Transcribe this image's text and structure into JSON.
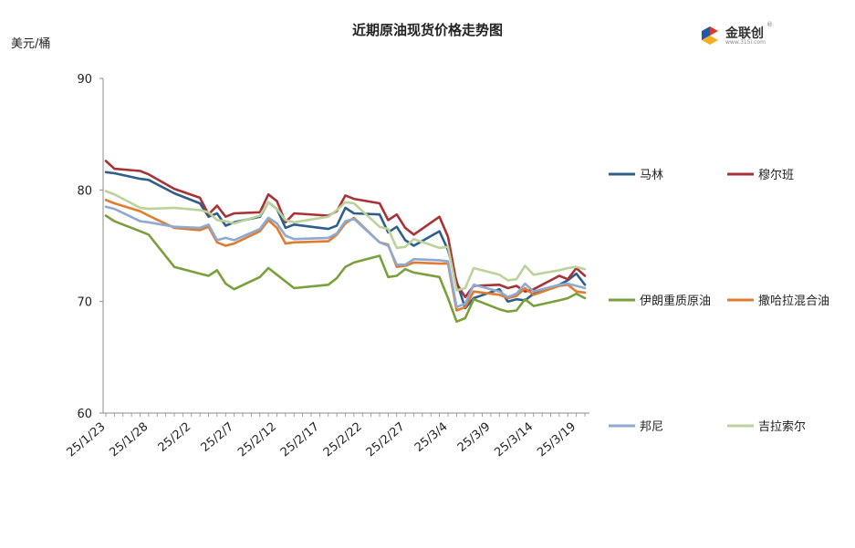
{
  "chart_data": {
    "type": "line",
    "title": "近期原油现货价格走势图",
    "ylabel": "美元/桶",
    "ylim": [
      60,
      90
    ],
    "yticks": [
      60,
      70,
      80,
      90
    ],
    "xtick_labels": [
      "25/1/23",
      "25/1/28",
      "25/2/2",
      "25/2/7",
      "25/2/12",
      "25/2/17",
      "25/2/22",
      "25/2/27",
      "25/3/4",
      "25/3/9",
      "25/3/14",
      "25/3/19"
    ],
    "x_range": [
      "2025-01-23",
      "2025-03-20"
    ],
    "legend_position": "right",
    "series": [
      {
        "name": "马林",
        "color": "#2E5F8A",
        "points": [
          [
            "2025-01-23",
            81.6
          ],
          [
            "2025-01-24",
            81.5
          ],
          [
            "2025-01-27",
            81.0
          ],
          [
            "2025-01-28",
            80.9
          ],
          [
            "2025-01-31",
            79.7
          ],
          [
            "2025-02-03",
            78.8
          ],
          [
            "2025-02-04",
            77.6
          ],
          [
            "2025-02-05",
            77.9
          ],
          [
            "2025-02-06",
            76.8
          ],
          [
            "2025-02-07",
            77.1
          ],
          [
            "2025-02-10",
            77.6
          ],
          [
            "2025-02-11",
            78.9
          ],
          [
            "2025-02-12",
            78.3
          ],
          [
            "2025-02-13",
            76.6
          ],
          [
            "2025-02-14",
            76.9
          ],
          [
            "2025-02-18",
            76.5
          ],
          [
            "2025-02-19",
            76.8
          ],
          [
            "2025-02-20",
            78.4
          ],
          [
            "2025-02-21",
            77.9
          ],
          [
            "2025-02-24",
            77.8
          ],
          [
            "2025-02-25",
            76.2
          ],
          [
            "2025-02-26",
            76.7
          ],
          [
            "2025-02-27",
            75.5
          ],
          [
            "2025-02-28",
            75.0
          ],
          [
            "2025-03-03",
            76.3
          ],
          [
            "2025-03-04",
            74.6
          ],
          [
            "2025-03-05",
            71.8
          ],
          [
            "2025-03-06",
            69.4
          ],
          [
            "2025-03-07",
            70.3
          ],
          [
            "2025-03-10",
            71.1
          ],
          [
            "2025-03-11",
            70.0
          ],
          [
            "2025-03-12",
            70.2
          ],
          [
            "2025-03-13",
            70.1
          ],
          [
            "2025-03-14",
            70.7
          ],
          [
            "2025-03-17",
            71.5
          ],
          [
            "2025-03-18",
            71.9
          ],
          [
            "2025-03-19",
            72.5
          ],
          [
            "2025-03-20",
            71.5
          ]
        ]
      },
      {
        "name": "穆尔班",
        "color": "#A83236",
        "points": [
          [
            "2025-01-23",
            82.6
          ],
          [
            "2025-01-24",
            81.9
          ],
          [
            "2025-01-27",
            81.7
          ],
          [
            "2025-01-28",
            81.4
          ],
          [
            "2025-01-31",
            80.1
          ],
          [
            "2025-02-03",
            79.3
          ],
          [
            "2025-02-04",
            77.8
          ],
          [
            "2025-02-05",
            78.6
          ],
          [
            "2025-02-06",
            77.6
          ],
          [
            "2025-02-07",
            77.9
          ],
          [
            "2025-02-10",
            78.0
          ],
          [
            "2025-02-11",
            79.6
          ],
          [
            "2025-02-12",
            79.0
          ],
          [
            "2025-02-13",
            77.1
          ],
          [
            "2025-02-14",
            77.9
          ],
          [
            "2025-02-18",
            77.7
          ],
          [
            "2025-02-19",
            78.1
          ],
          [
            "2025-02-20",
            79.5
          ],
          [
            "2025-02-21",
            79.2
          ],
          [
            "2025-02-24",
            78.8
          ],
          [
            "2025-02-25",
            77.3
          ],
          [
            "2025-02-26",
            77.8
          ],
          [
            "2025-02-27",
            76.6
          ],
          [
            "2025-02-28",
            76.0
          ],
          [
            "2025-03-03",
            77.6
          ],
          [
            "2025-03-04",
            75.8
          ],
          [
            "2025-03-05",
            71.6
          ],
          [
            "2025-03-06",
            70.4
          ],
          [
            "2025-03-07",
            71.4
          ],
          [
            "2025-03-10",
            71.5
          ],
          [
            "2025-03-11",
            71.2
          ],
          [
            "2025-03-12",
            71.4
          ],
          [
            "2025-03-13",
            70.9
          ],
          [
            "2025-03-14",
            71.1
          ],
          [
            "2025-03-17",
            72.3
          ],
          [
            "2025-03-18",
            72.0
          ],
          [
            "2025-03-19",
            73.0
          ],
          [
            "2025-03-20",
            72.3
          ]
        ]
      },
      {
        "name": "伊朗重质原油",
        "color": "#7AA03C",
        "points": [
          [
            "2025-01-23",
            77.7
          ],
          [
            "2025-01-24",
            77.2
          ],
          [
            "2025-01-27",
            76.3
          ],
          [
            "2025-01-28",
            76.0
          ],
          [
            "2025-01-31",
            73.1
          ],
          [
            "2025-02-03",
            72.5
          ],
          [
            "2025-02-04",
            72.3
          ],
          [
            "2025-02-05",
            72.8
          ],
          [
            "2025-02-06",
            71.6
          ],
          [
            "2025-02-07",
            71.1
          ],
          [
            "2025-02-10",
            72.2
          ],
          [
            "2025-02-11",
            73.0
          ],
          [
            "2025-02-12",
            72.4
          ],
          [
            "2025-02-13",
            71.8
          ],
          [
            "2025-02-14",
            71.2
          ],
          [
            "2025-02-18",
            71.5
          ],
          [
            "2025-02-19",
            72.1
          ],
          [
            "2025-02-20",
            73.1
          ],
          [
            "2025-02-21",
            73.5
          ],
          [
            "2025-02-24",
            74.1
          ],
          [
            "2025-02-25",
            72.2
          ],
          [
            "2025-02-26",
            72.3
          ],
          [
            "2025-02-27",
            72.9
          ],
          [
            "2025-02-28",
            72.6
          ],
          [
            "2025-03-03",
            72.2
          ],
          [
            "2025-03-04",
            70.3
          ],
          [
            "2025-03-05",
            68.2
          ],
          [
            "2025-03-06",
            68.5
          ],
          [
            "2025-03-07",
            70.2
          ],
          [
            "2025-03-10",
            69.3
          ],
          [
            "2025-03-11",
            69.1
          ],
          [
            "2025-03-12",
            69.2
          ],
          [
            "2025-03-13",
            70.2
          ],
          [
            "2025-03-14",
            69.6
          ],
          [
            "2025-03-17",
            70.1
          ],
          [
            "2025-03-18",
            70.3
          ],
          [
            "2025-03-19",
            70.7
          ],
          [
            "2025-03-20",
            70.3
          ]
        ]
      },
      {
        "name": "撒哈拉混合油",
        "color": "#E07B30",
        "points": [
          [
            "2025-01-23",
            79.1
          ],
          [
            "2025-01-24",
            78.8
          ],
          [
            "2025-01-27",
            78.1
          ],
          [
            "2025-01-28",
            77.7
          ],
          [
            "2025-01-31",
            76.6
          ],
          [
            "2025-02-03",
            76.4
          ],
          [
            "2025-02-04",
            76.7
          ],
          [
            "2025-02-05",
            75.3
          ],
          [
            "2025-02-06",
            75.0
          ],
          [
            "2025-02-07",
            75.2
          ],
          [
            "2025-02-10",
            76.3
          ],
          [
            "2025-02-11",
            77.3
          ],
          [
            "2025-02-12",
            76.6
          ],
          [
            "2025-02-13",
            75.2
          ],
          [
            "2025-02-14",
            75.3
          ],
          [
            "2025-02-18",
            75.4
          ],
          [
            "2025-02-19",
            76.0
          ],
          [
            "2025-02-20",
            77.0
          ],
          [
            "2025-02-21",
            77.5
          ],
          [
            "2025-02-24",
            75.3
          ],
          [
            "2025-02-25",
            75.1
          ],
          [
            "2025-02-26",
            73.1
          ],
          [
            "2025-02-27",
            73.2
          ],
          [
            "2025-02-28",
            73.5
          ],
          [
            "2025-03-03",
            73.4
          ],
          [
            "2025-03-04",
            73.4
          ],
          [
            "2025-03-05",
            69.2
          ],
          [
            "2025-03-06",
            69.5
          ],
          [
            "2025-03-07",
            70.9
          ],
          [
            "2025-03-10",
            70.6
          ],
          [
            "2025-03-11",
            70.3
          ],
          [
            "2025-03-12",
            70.5
          ],
          [
            "2025-03-13",
            71.2
          ],
          [
            "2025-03-14",
            70.6
          ],
          [
            "2025-03-17",
            71.4
          ],
          [
            "2025-03-18",
            71.5
          ],
          [
            "2025-03-19",
            70.9
          ],
          [
            "2025-03-20",
            70.8
          ]
        ]
      },
      {
        "name": "邦尼",
        "color": "#8EA9D2",
        "points": [
          [
            "2025-01-23",
            78.5
          ],
          [
            "2025-01-24",
            78.3
          ],
          [
            "2025-01-27",
            77.2
          ],
          [
            "2025-01-28",
            77.1
          ],
          [
            "2025-01-31",
            76.7
          ],
          [
            "2025-02-03",
            76.6
          ],
          [
            "2025-02-04",
            76.9
          ],
          [
            "2025-02-05",
            75.5
          ],
          [
            "2025-02-06",
            75.7
          ],
          [
            "2025-02-07",
            75.5
          ],
          [
            "2025-02-10",
            76.5
          ],
          [
            "2025-02-11",
            77.5
          ],
          [
            "2025-02-12",
            77.0
          ],
          [
            "2025-02-13",
            75.9
          ],
          [
            "2025-02-14",
            75.6
          ],
          [
            "2025-02-18",
            75.7
          ],
          [
            "2025-02-19",
            76.1
          ],
          [
            "2025-02-20",
            77.2
          ],
          [
            "2025-02-21",
            77.4
          ],
          [
            "2025-02-24",
            75.3
          ],
          [
            "2025-02-25",
            75.0
          ],
          [
            "2025-02-26",
            73.3
          ],
          [
            "2025-02-27",
            73.3
          ],
          [
            "2025-02-28",
            73.8
          ],
          [
            "2025-03-03",
            73.7
          ],
          [
            "2025-03-04",
            73.6
          ],
          [
            "2025-03-05",
            69.5
          ],
          [
            "2025-03-06",
            69.8
          ],
          [
            "2025-03-07",
            71.5
          ],
          [
            "2025-03-10",
            70.9
          ],
          [
            "2025-03-11",
            70.4
          ],
          [
            "2025-03-12",
            70.7
          ],
          [
            "2025-03-13",
            71.6
          ],
          [
            "2025-03-14",
            70.9
          ],
          [
            "2025-03-17",
            71.5
          ],
          [
            "2025-03-18",
            71.6
          ],
          [
            "2025-03-19",
            71.4
          ],
          [
            "2025-03-20",
            71.2
          ]
        ]
      },
      {
        "name": "吉拉索尔",
        "color": "#BBD29A",
        "points": [
          [
            "2025-01-23",
            79.9
          ],
          [
            "2025-01-24",
            79.6
          ],
          [
            "2025-01-27",
            78.4
          ],
          [
            "2025-01-28",
            78.3
          ],
          [
            "2025-01-31",
            78.4
          ],
          [
            "2025-02-03",
            78.2
          ],
          [
            "2025-02-04",
            78.0
          ],
          [
            "2025-02-05",
            77.3
          ],
          [
            "2025-02-06",
            77.2
          ],
          [
            "2025-02-07",
            77.0
          ],
          [
            "2025-02-10",
            77.7
          ],
          [
            "2025-02-11",
            78.9
          ],
          [
            "2025-02-12",
            78.3
          ],
          [
            "2025-02-13",
            77.3
          ],
          [
            "2025-02-14",
            77.1
          ],
          [
            "2025-02-18",
            77.6
          ],
          [
            "2025-02-19",
            78.2
          ],
          [
            "2025-02-20",
            78.9
          ],
          [
            "2025-02-21",
            78.8
          ],
          [
            "2025-02-24",
            76.7
          ],
          [
            "2025-02-25",
            76.5
          ],
          [
            "2025-02-26",
            74.8
          ],
          [
            "2025-02-27",
            74.9
          ],
          [
            "2025-02-28",
            75.6
          ],
          [
            "2025-03-03",
            74.8
          ],
          [
            "2025-03-04",
            74.9
          ],
          [
            "2025-03-05",
            71.0
          ],
          [
            "2025-03-06",
            71.2
          ],
          [
            "2025-03-07",
            73.0
          ],
          [
            "2025-03-10",
            72.4
          ],
          [
            "2025-03-11",
            71.9
          ],
          [
            "2025-03-12",
            72.0
          ],
          [
            "2025-03-13",
            73.2
          ],
          [
            "2025-03-14",
            72.4
          ],
          [
            "2025-03-17",
            72.8
          ],
          [
            "2025-03-18",
            73.0
          ],
          [
            "2025-03-19",
            73.1
          ],
          [
            "2025-03-20",
            72.9
          ]
        ]
      }
    ]
  },
  "logo": {
    "brand": "金联创",
    "registered": "®",
    "site": "www.315i.com",
    "colors": {
      "red": "#D93A2B",
      "blue": "#1F5AA6",
      "yellow": "#F2B01E"
    }
  }
}
